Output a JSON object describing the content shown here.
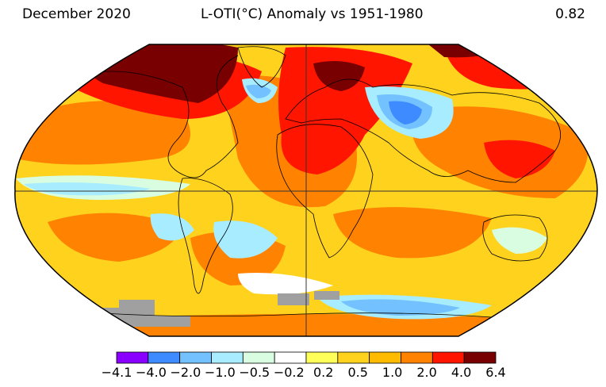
{
  "header": {
    "date": "December 2020",
    "title": "L-OTI(°C) Anomaly vs 1951-1980",
    "global_mean": "0.82"
  },
  "legend": {
    "bins": [
      {
        "color": "#8a00ff"
      },
      {
        "color": "#3d8bff"
      },
      {
        "color": "#73c2ff"
      },
      {
        "color": "#a7ecff"
      },
      {
        "color": "#d8fde0"
      },
      {
        "color": "#ffffff"
      },
      {
        "color": "#ffff5a"
      },
      {
        "color": "#ffd21e"
      },
      {
        "color": "#ffbb00"
      },
      {
        "color": "#ff8200"
      },
      {
        "color": "#ff1500"
      },
      {
        "color": "#780000"
      }
    ],
    "tick_labels": [
      "−4.1",
      "−4.0",
      "−2.0",
      "−1.0",
      "−0.5",
      "−0.2",
      "0.2",
      "0.5",
      "1.0",
      "2.0",
      "4.0",
      "6.4"
    ]
  },
  "colors": {
    "missing": "#a0a0a0",
    "outline": "#000000",
    "grid": "#333333"
  }
}
